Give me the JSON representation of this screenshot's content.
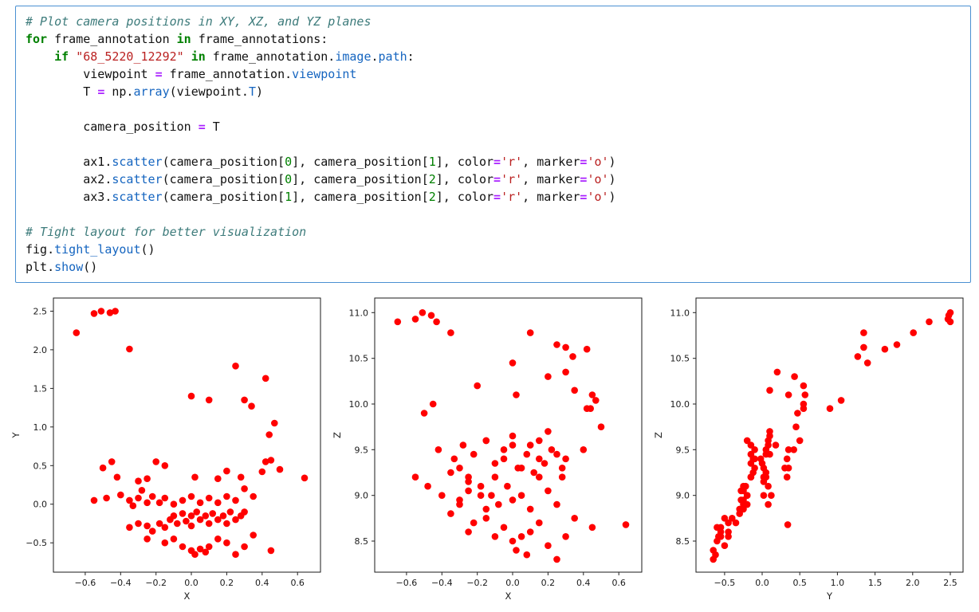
{
  "code": {
    "lines": [
      [
        [
          "c",
          "# Plot camera positions in XY, XZ, and YZ planes"
        ]
      ],
      [
        [
          "k",
          "for"
        ],
        [
          "p",
          " frame_annotation "
        ],
        [
          "k",
          "in"
        ],
        [
          "p",
          " frame_annotations:"
        ]
      ],
      [
        [
          "p",
          "    "
        ],
        [
          "k",
          "if"
        ],
        [
          "p",
          " "
        ],
        [
          "s",
          "\"68_5220_12292\""
        ],
        [
          "p",
          " "
        ],
        [
          "k",
          "in"
        ],
        [
          "p",
          " frame_annotation."
        ],
        [
          "a",
          "image"
        ],
        [
          "p",
          "."
        ],
        [
          "a",
          "path"
        ],
        [
          "p",
          ":"
        ]
      ],
      [
        [
          "p",
          "        viewpoint "
        ],
        [
          "o",
          "="
        ],
        [
          "p",
          " frame_annotation."
        ],
        [
          "a",
          "viewpoint"
        ]
      ],
      [
        [
          "p",
          "        T "
        ],
        [
          "o",
          "="
        ],
        [
          "p",
          " np."
        ],
        [
          "a",
          "array"
        ],
        [
          "p",
          "(viewpoint."
        ],
        [
          "a",
          "T"
        ],
        [
          "p",
          ")"
        ]
      ],
      [],
      [
        [
          "p",
          "        camera_position "
        ],
        [
          "o",
          "="
        ],
        [
          "p",
          " T"
        ]
      ],
      [],
      [
        [
          "p",
          "        ax1."
        ],
        [
          "a",
          "scatter"
        ],
        [
          "p",
          "(camera_position["
        ],
        [
          "n",
          "0"
        ],
        [
          "p",
          "], camera_position["
        ],
        [
          "n",
          "1"
        ],
        [
          "p",
          "], color"
        ],
        [
          "o",
          "="
        ],
        [
          "s",
          "'r'"
        ],
        [
          "p",
          ", marker"
        ],
        [
          "o",
          "="
        ],
        [
          "s",
          "'o'"
        ],
        [
          "p",
          ")"
        ]
      ],
      [
        [
          "p",
          "        ax2."
        ],
        [
          "a",
          "scatter"
        ],
        [
          "p",
          "(camera_position["
        ],
        [
          "n",
          "0"
        ],
        [
          "p",
          "], camera_position["
        ],
        [
          "n",
          "2"
        ],
        [
          "p",
          "], color"
        ],
        [
          "o",
          "="
        ],
        [
          "s",
          "'r'"
        ],
        [
          "p",
          ", marker"
        ],
        [
          "o",
          "="
        ],
        [
          "s",
          "'o'"
        ],
        [
          "p",
          ")"
        ]
      ],
      [
        [
          "p",
          "        ax3."
        ],
        [
          "a",
          "scatter"
        ],
        [
          "p",
          "(camera_position["
        ],
        [
          "n",
          "1"
        ],
        [
          "p",
          "], camera_position["
        ],
        [
          "n",
          "2"
        ],
        [
          "p",
          "], color"
        ],
        [
          "o",
          "="
        ],
        [
          "s",
          "'r'"
        ],
        [
          "p",
          ", marker"
        ],
        [
          "o",
          "="
        ],
        [
          "s",
          "'o'"
        ],
        [
          "p",
          ")"
        ]
      ],
      [],
      [
        [
          "c",
          "# Tight layout for better visualization"
        ]
      ],
      [
        [
          "p",
          "fig."
        ],
        [
          "a",
          "tight_layout"
        ],
        [
          "p",
          "()"
        ]
      ],
      [
        [
          "p",
          "plt."
        ],
        [
          "a",
          "show"
        ],
        [
          "p",
          "()"
        ]
      ]
    ]
  },
  "chart_data": {
    "type": "scatter",
    "description": "Camera positions projected onto XY, XZ and YZ planes (three subplots, red circular markers)",
    "marker_color": "#ff0000",
    "marker_shape": "o",
    "points": [
      [
        -0.65,
        2.22,
        10.9
      ],
      [
        -0.55,
        2.47,
        10.93
      ],
      [
        -0.51,
        2.5,
        11.0
      ],
      [
        -0.46,
        2.48,
        10.97
      ],
      [
        -0.43,
        2.5,
        10.9
      ],
      [
        -0.35,
        2.01,
        10.78
      ],
      [
        0.25,
        1.79,
        10.65
      ],
      [
        0.42,
        1.63,
        10.6
      ],
      [
        0.0,
        1.4,
        10.45
      ],
      [
        0.1,
        1.35,
        10.78
      ],
      [
        0.3,
        1.35,
        10.62
      ],
      [
        0.34,
        1.27,
        10.52
      ],
      [
        0.47,
        1.05,
        10.04
      ],
      [
        0.44,
        0.9,
        9.95
      ],
      [
        -0.45,
        0.55,
        10.0
      ],
      [
        -0.5,
        0.47,
        9.9
      ],
      [
        -0.42,
        0.35,
        9.5
      ],
      [
        -0.3,
        0.3,
        9.3
      ],
      [
        -0.28,
        0.18,
        9.55
      ],
      [
        -0.25,
        0.33,
        9.2
      ],
      [
        -0.2,
        0.55,
        10.2
      ],
      [
        -0.15,
        0.5,
        9.6
      ],
      [
        0.02,
        0.35,
        10.1
      ],
      [
        0.15,
        0.33,
        9.4
      ],
      [
        0.2,
        0.43,
        10.3
      ],
      [
        0.28,
        0.35,
        9.3
      ],
      [
        0.42,
        0.55,
        9.95
      ],
      [
        0.45,
        0.57,
        10.1
      ],
      [
        0.5,
        0.45,
        9.75
      ],
      [
        0.64,
        0.34,
        8.68
      ],
      [
        0.4,
        0.42,
        9.5
      ],
      [
        -0.55,
        0.05,
        9.2
      ],
      [
        -0.48,
        0.08,
        9.1
      ],
      [
        -0.4,
        0.12,
        9.0
      ],
      [
        -0.35,
        0.05,
        9.25
      ],
      [
        -0.33,
        -0.02,
        9.4
      ],
      [
        -0.3,
        0.08,
        8.9
      ],
      [
        -0.25,
        0.02,
        9.15
      ],
      [
        -0.22,
        0.1,
        9.45
      ],
      [
        -0.18,
        0.02,
        9.0
      ],
      [
        -0.15,
        0.08,
        9.6
      ],
      [
        -0.1,
        0.0,
        9.35
      ],
      [
        -0.05,
        0.05,
        9.5
      ],
      [
        0.0,
        0.1,
        9.65
      ],
      [
        0.05,
        0.02,
        9.3
      ],
      [
        0.1,
        0.08,
        9.55
      ],
      [
        0.15,
        0.02,
        9.2
      ],
      [
        0.2,
        0.1,
        9.7
      ],
      [
        0.25,
        0.05,
        9.45
      ],
      [
        0.3,
        0.2,
        10.35
      ],
      [
        0.35,
        0.1,
        10.15
      ],
      [
        -0.35,
        -0.3,
        8.8
      ],
      [
        -0.3,
        -0.25,
        8.95
      ],
      [
        -0.25,
        -0.28,
        9.05
      ],
      [
        -0.22,
        -0.35,
        8.7
      ],
      [
        -0.18,
        -0.25,
        9.1
      ],
      [
        -0.15,
        -0.3,
        8.85
      ],
      [
        -0.12,
        -0.2,
        9.0
      ],
      [
        -0.1,
        -0.15,
        9.2
      ],
      [
        -0.08,
        -0.25,
        8.9
      ],
      [
        -0.05,
        -0.12,
        9.4
      ],
      [
        -0.03,
        -0.22,
        9.1
      ],
      [
        0.0,
        -0.15,
        9.55
      ],
      [
        0.0,
        -0.28,
        8.95
      ],
      [
        0.03,
        -0.1,
        9.3
      ],
      [
        0.05,
        -0.2,
        9.0
      ],
      [
        0.08,
        -0.15,
        9.45
      ],
      [
        0.1,
        -0.25,
        8.85
      ],
      [
        0.12,
        -0.12,
        9.25
      ],
      [
        0.15,
        -0.2,
        9.6
      ],
      [
        0.18,
        -0.15,
        9.35
      ],
      [
        0.2,
        -0.25,
        9.05
      ],
      [
        0.22,
        -0.1,
        9.5
      ],
      [
        0.25,
        -0.2,
        8.9
      ],
      [
        0.28,
        -0.15,
        9.2
      ],
      [
        0.3,
        -0.1,
        9.4
      ],
      [
        -0.25,
        -0.45,
        8.6
      ],
      [
        -0.15,
        -0.5,
        8.75
      ],
      [
        -0.1,
        -0.45,
        8.55
      ],
      [
        -0.05,
        -0.55,
        8.65
      ],
      [
        0.0,
        -0.6,
        8.5
      ],
      [
        0.02,
        -0.65,
        8.4
      ],
      [
        0.05,
        -0.58,
        8.55
      ],
      [
        0.08,
        -0.62,
        8.35
      ],
      [
        0.1,
        -0.55,
        8.6
      ],
      [
        0.15,
        -0.45,
        8.7
      ],
      [
        0.2,
        -0.5,
        8.45
      ],
      [
        0.25,
        -0.65,
        8.3
      ],
      [
        0.3,
        -0.55,
        8.55
      ],
      [
        0.45,
        -0.6,
        8.65
      ],
      [
        0.35,
        -0.4,
        8.75
      ]
    ],
    "subplots": [
      {
        "name": "xy",
        "xlabel": "X",
        "ylabel": "Y",
        "x_index": 0,
        "y_index": 1,
        "xlim": [
          -0.78,
          0.73
        ],
        "ylim": [
          -0.88,
          2.67
        ],
        "xticks": [
          -0.6,
          -0.4,
          -0.2,
          0.0,
          0.2,
          0.4,
          0.6
        ],
        "xtick_labels": [
          "−0.6",
          "−0.4",
          "−0.2",
          "0.0",
          "0.2",
          "0.4",
          "0.6"
        ],
        "yticks": [
          -0.5,
          0.0,
          0.5,
          1.0,
          1.5,
          2.0,
          2.5
        ],
        "ytick_labels": [
          "−0.5",
          "0.0",
          "0.5",
          "1.0",
          "1.5",
          "2.0",
          "2.5"
        ],
        "grid": false
      },
      {
        "name": "xz",
        "xlabel": "X",
        "ylabel": "Z",
        "x_index": 0,
        "y_index": 2,
        "xlim": [
          -0.78,
          0.73
        ],
        "ylim": [
          8.16,
          11.16
        ],
        "xticks": [
          -0.6,
          -0.4,
          -0.2,
          0.0,
          0.2,
          0.4,
          0.6
        ],
        "xtick_labels": [
          "−0.6",
          "−0.4",
          "−0.2",
          "0.0",
          "0.2",
          "0.4",
          "0.6"
        ],
        "yticks": [
          8.5,
          9.0,
          9.5,
          10.0,
          10.5,
          11.0
        ],
        "ytick_labels": [
          "8.5",
          "9.0",
          "9.5",
          "10.0",
          "10.5",
          "11.0"
        ],
        "grid": false
      },
      {
        "name": "yz",
        "xlabel": "Y",
        "ylabel": "Z",
        "x_index": 1,
        "y_index": 2,
        "xlim": [
          -0.88,
          2.67
        ],
        "ylim": [
          8.16,
          11.16
        ],
        "xticks": [
          -0.5,
          0.0,
          0.5,
          1.0,
          1.5,
          2.0,
          2.5
        ],
        "xtick_labels": [
          "−0.5",
          "0.0",
          "0.5",
          "1.0",
          "1.5",
          "2.0",
          "2.5"
        ],
        "yticks": [
          8.5,
          9.0,
          9.5,
          10.0,
          10.5,
          11.0
        ],
        "ytick_labels": [
          "8.5",
          "9.0",
          "9.5",
          "10.0",
          "10.5",
          "11.0"
        ],
        "grid": false
      }
    ]
  }
}
